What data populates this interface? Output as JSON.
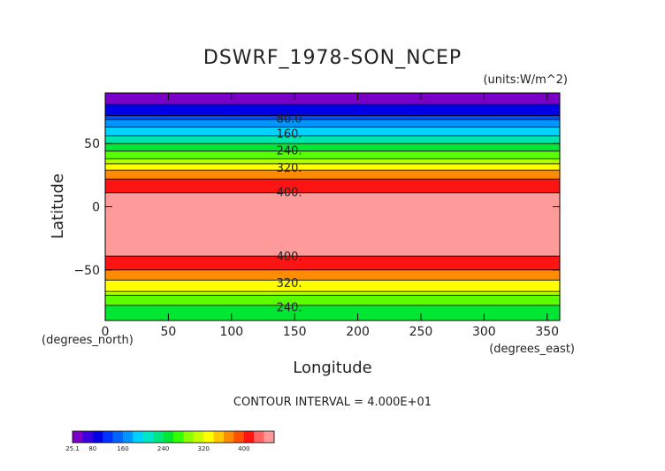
{
  "chart_data": {
    "type": "heatmap",
    "title": "DSWRF_1978-SON_NCEP",
    "units": "(units:W/m^2)",
    "xlabel": "Longitude",
    "ylabel": "Latitude",
    "x_unit_label": "(degrees_east)",
    "y_unit_label": "(degrees_north)",
    "xlim": [
      0,
      360
    ],
    "ylim": [
      -90,
      90
    ],
    "xticks": [
      0,
      50,
      100,
      150,
      200,
      250,
      300,
      350
    ],
    "yticks": [
      -50,
      0,
      50
    ],
    "contour_interval_text": "CONTOUR INTERVAL = 4.000E+01",
    "bands": [
      {
        "lat_min": 81,
        "lat_max": 90,
        "color": "#7a00c8"
      },
      {
        "lat_min": 72,
        "lat_max": 81,
        "color": "#0000e6"
      },
      {
        "lat_min": 69,
        "lat_max": 72,
        "color": "#0050ff"
      },
      {
        "lat_min": 63,
        "lat_max": 69,
        "color": "#0096ff"
      },
      {
        "lat_min": 56,
        "lat_max": 63,
        "color": "#00d2ff"
      },
      {
        "lat_min": 50,
        "lat_max": 56,
        "color": "#00e6aa"
      },
      {
        "lat_min": 44,
        "lat_max": 50,
        "color": "#00e632"
      },
      {
        "lat_min": 38,
        "lat_max": 44,
        "color": "#5aff00"
      },
      {
        "lat_min": 34,
        "lat_max": 38,
        "color": "#b4ff00"
      },
      {
        "lat_min": 29,
        "lat_max": 34,
        "color": "#ffff00"
      },
      {
        "lat_min": 22,
        "lat_max": 29,
        "color": "#ff8c00"
      },
      {
        "lat_min": 11,
        "lat_max": 22,
        "color": "#ff1414"
      },
      {
        "lat_min": -39,
        "lat_max": 11,
        "color": "#ff9a9a"
      },
      {
        "lat_min": -50,
        "lat_max": -39,
        "color": "#ff1414"
      },
      {
        "lat_min": -58,
        "lat_max": -50,
        "color": "#ff8c00"
      },
      {
        "lat_min": -67,
        "lat_max": -58,
        "color": "#ffff00"
      },
      {
        "lat_min": -70,
        "lat_max": -67,
        "color": "#b4ff00"
      },
      {
        "lat_min": -78,
        "lat_max": -70,
        "color": "#5aff00"
      },
      {
        "lat_min": -90,
        "lat_max": -78,
        "color": "#00e632"
      }
    ],
    "contour_lines": [
      81,
      72,
      69,
      63,
      56,
      50,
      44,
      38,
      34,
      29,
      22,
      11,
      -39,
      -50,
      -58,
      -67,
      -70,
      -78
    ],
    "contour_labels": [
      {
        "text": "80.0",
        "lat": 70
      },
      {
        "text": "160.",
        "lat": 58
      },
      {
        "text": "240.",
        "lat": 45
      },
      {
        "text": "320.",
        "lat": 31
      },
      {
        "text": "400.",
        "lat": 12
      },
      {
        "text": "400.",
        "lat": -39
      },
      {
        "text": "320.",
        "lat": -60
      },
      {
        "text": "240.",
        "lat": -79
      }
    ],
    "contour_label_lon": 130,
    "colorbar": {
      "colors": [
        "#7a00c8",
        "#3c00dc",
        "#0000e6",
        "#0032ff",
        "#0064ff",
        "#0096ff",
        "#00d2ff",
        "#00e6c8",
        "#00e682",
        "#00e632",
        "#32ff00",
        "#8cff00",
        "#c8ff00",
        "#ffff00",
        "#ffc800",
        "#ff8c00",
        "#ff5000",
        "#ff1414",
        "#ff6464",
        "#ff9a9a"
      ],
      "ticks": [
        {
          "label": "25.1",
          "index": 0
        },
        {
          "label": "80",
          "index": 2
        },
        {
          "label": "160",
          "index": 5
        },
        {
          "label": "240",
          "index": 9
        },
        {
          "label": "320",
          "index": 13
        },
        {
          "label": "400",
          "index": 17
        }
      ]
    }
  }
}
